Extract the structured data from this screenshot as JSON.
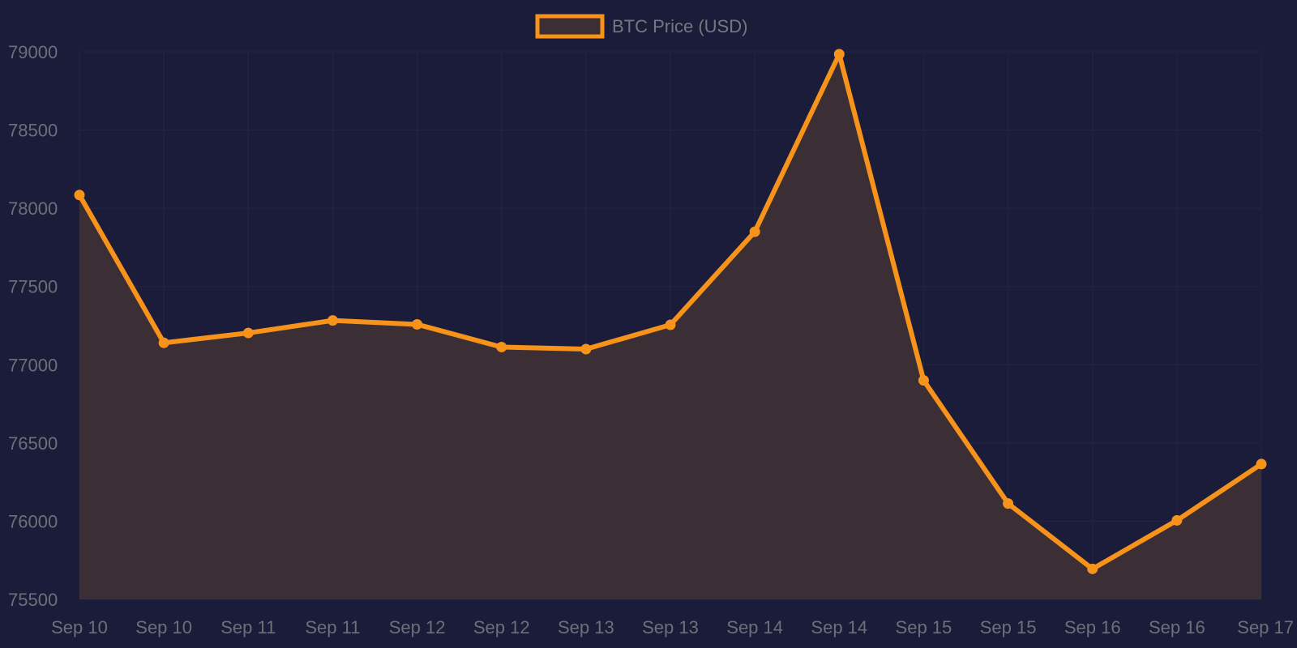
{
  "colors": {
    "background": "#1a1c3a",
    "line": "#f7931a",
    "fill": "#3c2e35",
    "grid": "#232545",
    "text": "#6f6f78"
  },
  "chart_data": {
    "type": "area",
    "title": "",
    "xlabel": "",
    "ylabel": "",
    "legend": {
      "position": "top-center",
      "entries": [
        "BTC Price (USD)"
      ]
    },
    "categories": [
      "Sep 10",
      "Sep 10",
      "Sep 11",
      "Sep 11",
      "Sep 12",
      "Sep 12",
      "Sep 13",
      "Sep 13",
      "Sep 14",
      "Sep 14",
      "Sep 15",
      "Sep 15",
      "Sep 16",
      "Sep 16",
      "Sep 17"
    ],
    "series": [
      {
        "name": "BTC Price (USD)",
        "values": [
          78085,
          77140,
          77203,
          77283,
          77258,
          77113,
          77100,
          77255,
          77850,
          78985,
          76900,
          76113,
          75695,
          76005,
          76365
        ]
      }
    ],
    "ylim": [
      75500,
      79000
    ],
    "yticks": [
      75500,
      76000,
      76500,
      77000,
      77500,
      78000,
      78500,
      79000
    ],
    "grid": true
  }
}
